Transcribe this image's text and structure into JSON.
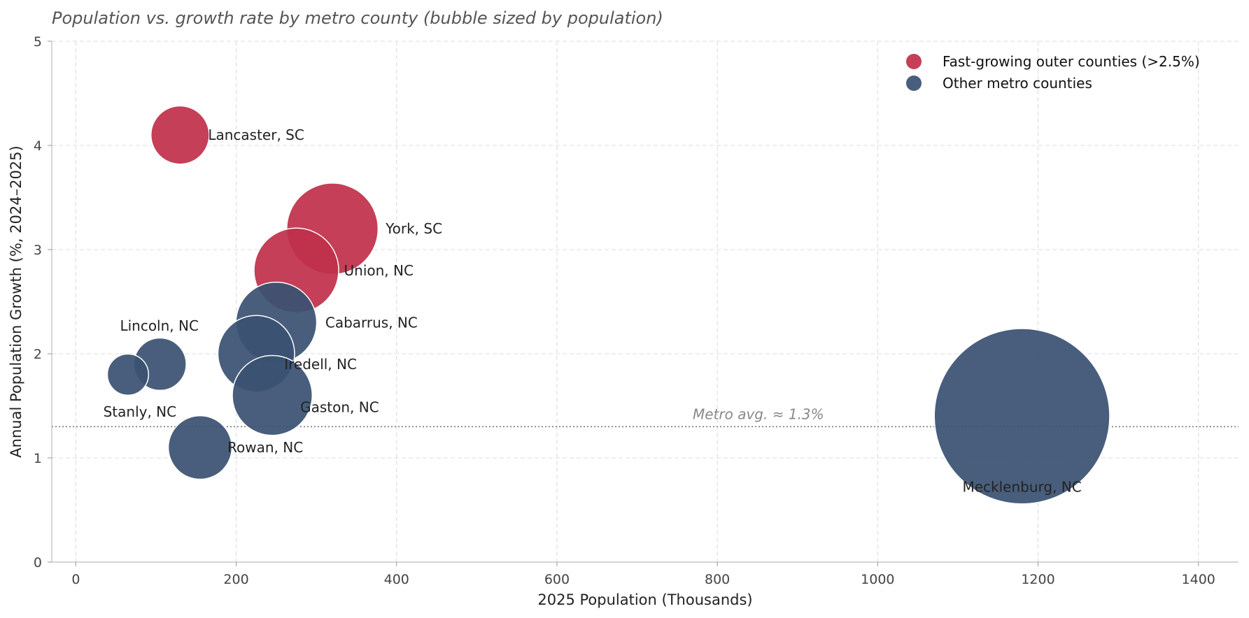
{
  "chart_data": {
    "type": "scatter",
    "subtype": "bubble",
    "title": "Population vs. growth rate by metro county (bubble sized by population)",
    "xlabel": "2025 Population (Thousands)",
    "ylabel": "Annual Population Growth (%, 2024–2025)",
    "xlim": [
      -30,
      1450
    ],
    "ylim": [
      0,
      5
    ],
    "x_ticks": [
      0,
      200,
      400,
      600,
      800,
      1000,
      1200,
      1400
    ],
    "y_ticks": [
      0,
      1,
      2,
      3,
      4,
      5
    ],
    "grid": true,
    "legend_position": "top-right",
    "colors": {
      "fast": "#c0304a",
      "other": "#3a5272"
    },
    "series": [
      {
        "name": "Fast-growing outer counties (>2.5%)",
        "color_key": "fast",
        "points": [
          {
            "label": "Lancaster, SC",
            "x": 130,
            "y": 4.1
          },
          {
            "label": "York, SC",
            "x": 320,
            "y": 3.2
          },
          {
            "label": "Union, NC",
            "x": 275,
            "y": 2.8
          }
        ]
      },
      {
        "name": "Other metro counties",
        "color_key": "other",
        "points": [
          {
            "label": "Cabarrus, NC",
            "x": 250,
            "y": 2.3
          },
          {
            "label": "Iredell, NC",
            "x": 225,
            "y": 2.0
          },
          {
            "label": "Lincoln, NC",
            "x": 105,
            "y": 1.9
          },
          {
            "label": "Stanly, NC",
            "x": 65,
            "y": 1.8
          },
          {
            "label": "Gaston, NC",
            "x": 245,
            "y": 1.6
          },
          {
            "label": "Rowan, NC",
            "x": 155,
            "y": 1.1
          },
          {
            "label": "Mecklenburg, NC",
            "x": 1180,
            "y": 1.4
          }
        ]
      }
    ],
    "reference_line": {
      "y": 1.3,
      "label": "Metro avg. ≈ 1.3%"
    }
  }
}
